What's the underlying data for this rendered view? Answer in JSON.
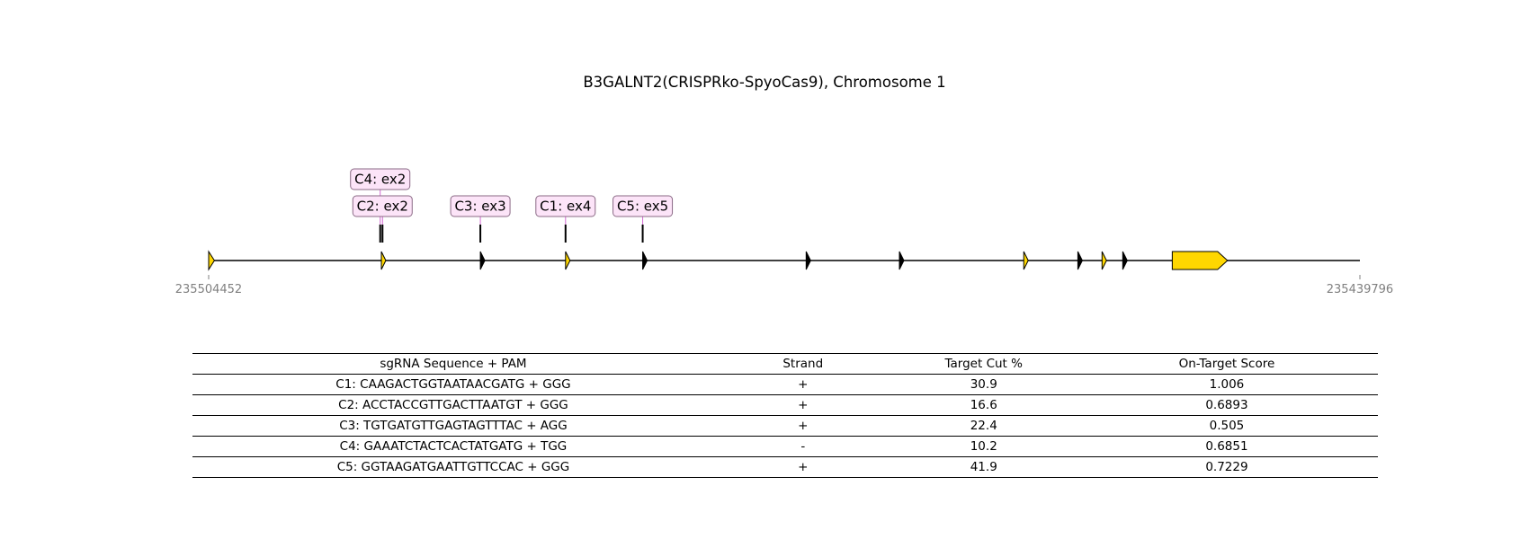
{
  "title": "B3GALNT2(CRISPRko-SpyoCas9), Chromosome 1",
  "gene_map": {
    "start_coord": "235504452",
    "end_coord": "235439796",
    "colors": {
      "exon_fill": "#FFD700",
      "label_fill": "#FCE4F8",
      "label_border": "#8A6A85",
      "connector": "#D36AD3",
      "line": "#000000"
    },
    "exons": [
      {
        "pos": 0.0,
        "len": 0.005,
        "style": "arrow"
      },
      {
        "pos": 0.15,
        "len": 0.003,
        "style": "arrow"
      },
      {
        "pos": 0.236,
        "len": 0.002,
        "style": "notch"
      },
      {
        "pos": 0.31,
        "len": 0.003,
        "style": "arrow"
      },
      {
        "pos": 0.377,
        "len": 0.002,
        "style": "notch"
      },
      {
        "pos": 0.519,
        "len": 0.002,
        "style": "notch"
      },
      {
        "pos": 0.6,
        "len": 0.002,
        "style": "notch"
      },
      {
        "pos": 0.708,
        "len": 0.003,
        "style": "arrow"
      },
      {
        "pos": 0.755,
        "len": 0.002,
        "style": "notch"
      },
      {
        "pos": 0.776,
        "len": 0.003,
        "style": "arrow"
      },
      {
        "pos": 0.794,
        "len": 0.002,
        "style": "notch"
      },
      {
        "pos": 0.837,
        "len": 0.048,
        "style": "arrow"
      }
    ],
    "guides": [
      {
        "label": "C4: ex2",
        "pos": 0.149,
        "tier": 2
      },
      {
        "label": "C2: ex2",
        "pos": 0.151,
        "tier": 1
      },
      {
        "label": "C3: ex3",
        "pos": 0.236,
        "tier": 1
      },
      {
        "label": "C1: ex4",
        "pos": 0.31,
        "tier": 1
      },
      {
        "label": "C5: ex5",
        "pos": 0.377,
        "tier": 1
      }
    ]
  },
  "table": {
    "headers": [
      "sgRNA Sequence + PAM",
      "Strand",
      "Target Cut %",
      "On-Target Score"
    ],
    "rows": [
      [
        "C1: CAAGACTGGTAATAACGATG + GGG",
        "+",
        "30.9",
        "1.006"
      ],
      [
        "C2: ACCTACCGTTGACTTAATGT + GGG",
        "+",
        "16.6",
        "0.6893"
      ],
      [
        "C3: TGTGATGTTGAGTAGTTTAC + AGG",
        "+",
        "22.4",
        "0.505"
      ],
      [
        "C4: GAAATCTACTCACTATGATG + TGG",
        "-",
        "10.2",
        "0.6851"
      ],
      [
        "C5: GGTAAGATGAATTGTTCCAC + GGG",
        "+",
        "41.9",
        "0.7229"
      ]
    ]
  }
}
